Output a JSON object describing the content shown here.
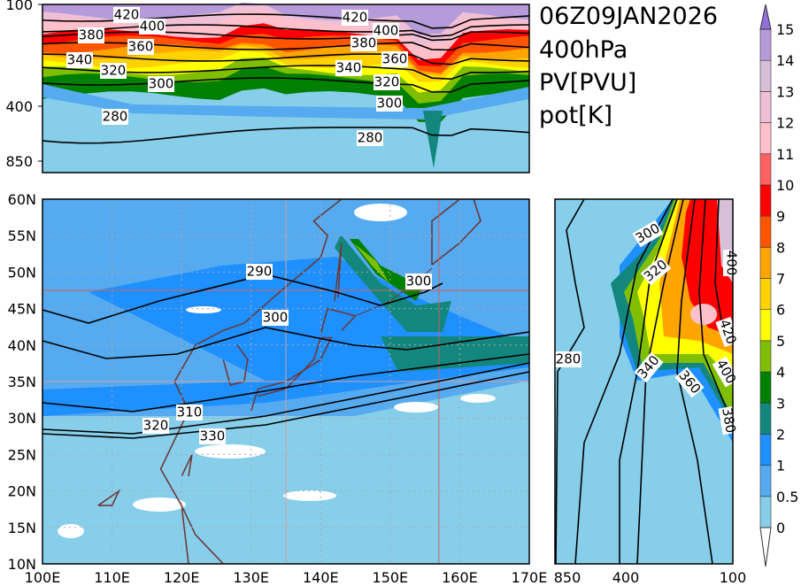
{
  "title_lines": [
    "06Z09JAN2026",
    "400hPa",
    "PV[PVU]",
    "pot[K]"
  ],
  "chart_data": {
    "type": "heatmap",
    "fields": {
      "shaded": "PV[PVU]",
      "contours": "pot[K]"
    },
    "level": "400hPa",
    "valid_time": "06Z09JAN2026",
    "map": {
      "x_ticks": [
        "100E",
        "110E",
        "120E",
        "130E",
        "140E",
        "150E",
        "160E",
        "170E"
      ],
      "y_ticks": [
        "60N",
        "55N",
        "50N",
        "45N",
        "40N",
        "35N",
        "30N",
        "25N",
        "20N",
        "15N",
        "10N"
      ],
      "lon_range": [
        100,
        170
      ],
      "lat_range": [
        10,
        60
      ],
      "contour_labels": [
        "290",
        "300",
        "300",
        "310",
        "320",
        "330"
      ],
      "cross_lines": {
        "lon": 157,
        "lat": 47.5
      }
    },
    "top_section": {
      "y_ticks": [
        "100",
        "400",
        "850"
      ],
      "contour_labels": [
        "420",
        "400",
        "380",
        "360",
        "340",
        "320",
        "300",
        "280",
        "420",
        "400",
        "380",
        "360",
        "340",
        "320",
        "300",
        "280"
      ]
    },
    "right_section": {
      "x_ticks": [
        "850",
        "400",
        "100"
      ],
      "contour_labels": [
        "300",
        "320",
        "340",
        "360",
        "400",
        "420",
        "280",
        "380",
        "400"
      ]
    },
    "colorbar": {
      "labels": [
        "0",
        "0.5",
        "1",
        "2",
        "3",
        "4",
        "5",
        "6",
        "7",
        "8",
        "9",
        "10",
        "11",
        "12",
        "13",
        "14",
        "15"
      ],
      "colors": [
        "#87ceeb",
        "#56aaf0",
        "#1e90ff",
        "#13877d",
        "#008000",
        "#80bf00",
        "#ffff00",
        "#ffd200",
        "#ffa500",
        "#ff5500",
        "#ff0000",
        "#ff6060",
        "#ffc0cb",
        "#eebfd6",
        "#d8bfd8",
        "#b59bd9"
      ],
      "over_color": "#9370db",
      "under_color": "#ffffff"
    }
  }
}
